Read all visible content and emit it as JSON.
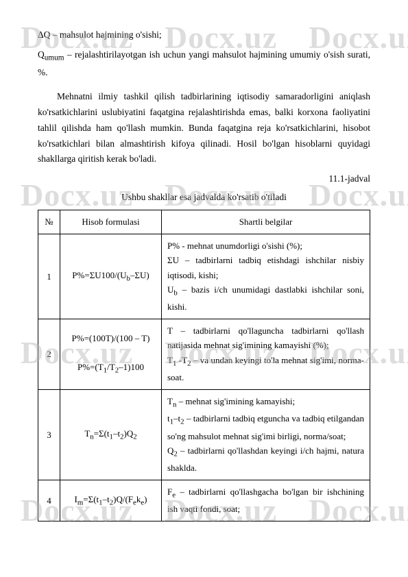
{
  "watermark": "Docx.uz",
  "p1": "ΔQ – mahsulot hajmining o'sishi;",
  "p2": "Q",
  "p2_sub": "umum",
  "p2_rest": " – rejalashtirilayotgan ish uchun yangi mahsulot hajmining umumiy o'sish surati, %.",
  "p3": "Mehnatni ilmiy tashkil qilish tadbirlarining iqtisodiy samaradorligini aniqlash ko'rsatkichlarini uslubiyatini faqatgina rejalashtirishda emas, balki korxona faoliyatini tahlil qilishda ham qo'llash mumkin. Bunda faqatgina reja ko'rsatkichlarini, hisobot ko'rsatkichlari bilan almashtirish kifoya qilinadi. Hosil bo'lgan hisoblarni quyidagi shakllarga qiritish kerak bo'ladi.",
  "table_label": "11.1-jadval",
  "caption": "Ushbu shakllar esa jadvalda ko'rsatib o'tiladi",
  "table": {
    "headers": [
      "№",
      "Hisob formulasi",
      "Shartli belgilar"
    ],
    "rows": [
      {
        "num": "1",
        "formula": "P%=ΣU100/(U_b–ΣU)",
        "desc": "P% - mehnat unumdorligi o'sishi (%);\nΣU – tadbirlarni tadbiq etishdagi ishchilar nisbiy iqtisodi, kishi;\nU_b – bazis i/ch unumidagi dastlabki ishchilar soni, kishi."
      },
      {
        "num": "2",
        "formula": "P%=(100T)/(100 – T)\n\nP%=(T₁/T₂–1)100",
        "desc": "T – tadbirlarni qo'llaguncha tadbirlarni qo'llash natijasida mehnat sig'imining kamayishi (%);\nT₁ -T₂ – va undan keyingi to'la mehnat sig'imi, norma-soat."
      },
      {
        "num": "3",
        "formula": "T_n=Σ(t₁–t₂)Q₂",
        "desc": "T_n – mehnat sig'imining kamayishi;\nt₁–t₂ – tadbirlarni tadbiq etguncha va tadbiq etilgandan so'ng mahsulot mehnat sig'imi birligi, norma/soat;\nQ₂ – tadbirlarni qo'llashdan keyingi i/ch hajmi, natura shaklda."
      },
      {
        "num": "4",
        "formula": "I_m=Σ(t₁–t₂)Q/(F_e k_e)",
        "desc": "F_e – tadbirlarni qo'llashgacha bo'lgan bir ishchining ish vaqti fondi, soat;"
      }
    ]
  }
}
